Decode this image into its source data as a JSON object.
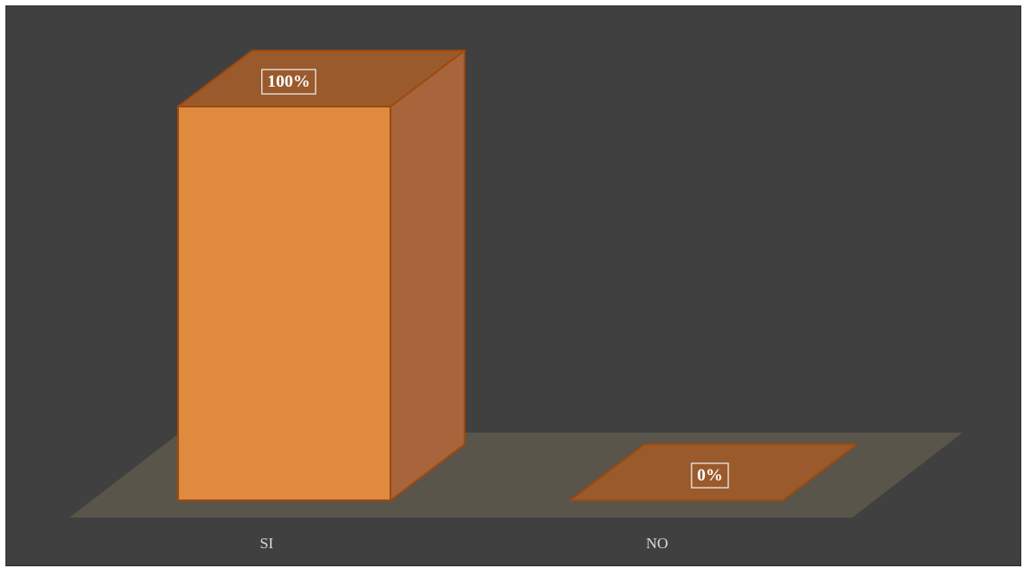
{
  "chart_data": {
    "type": "bar",
    "style": "3d-column",
    "categories": [
      "SI",
      "NO"
    ],
    "values": [
      100,
      0
    ],
    "data_labels": [
      "100%",
      "0%"
    ],
    "ylim": [
      0,
      100
    ],
    "title": "",
    "xlabel": "",
    "ylabel": "",
    "grid": false,
    "legend": "none"
  },
  "colors": {
    "background": "#404040",
    "floor": "#59554a",
    "bar_front": "#e08a40",
    "bar_side": "#a8643a",
    "bar_top": "#9a5a2c",
    "bar_edge": "#9e4a0e",
    "category_text": "#d9d9d9",
    "label_text": "#ffffff"
  }
}
